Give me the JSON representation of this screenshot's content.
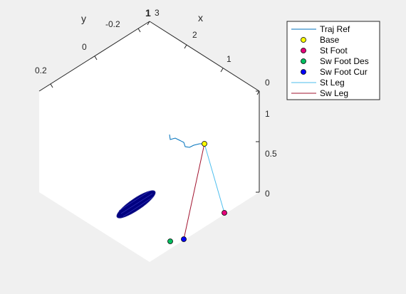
{
  "chart_data": {
    "type": "3d-line-scatter",
    "axes": {
      "x": {
        "label": "x",
        "ticks": [
          "3",
          "2",
          "1",
          "0"
        ]
      },
      "y": {
        "label": "y",
        "ticks": [
          "-0.2",
          "0",
          "0.2"
        ]
      },
      "z": {
        "ticks": [
          "1",
          "0.5",
          "0"
        ]
      }
    },
    "corner_label": "1",
    "legend": {
      "position": "top-right",
      "entries": [
        {
          "label": "Traj Ref",
          "kind": "line",
          "color": "#0072bd"
        },
        {
          "label": "Base",
          "kind": "marker",
          "color": "#ffff00"
        },
        {
          "label": "St Foot",
          "kind": "marker",
          "color": "#e6007a"
        },
        {
          "label": "Sw Foot Des",
          "kind": "marker",
          "color": "#00c060"
        },
        {
          "label": "Sw Foot Cur",
          "kind": "marker",
          "color": "#0000ff"
        },
        {
          "label": "St Leg",
          "kind": "line",
          "color": "#4dbeee"
        },
        {
          "label": "Sw Leg",
          "kind": "line",
          "color": "#a2142f"
        }
      ]
    },
    "body_color": "#00008b"
  }
}
